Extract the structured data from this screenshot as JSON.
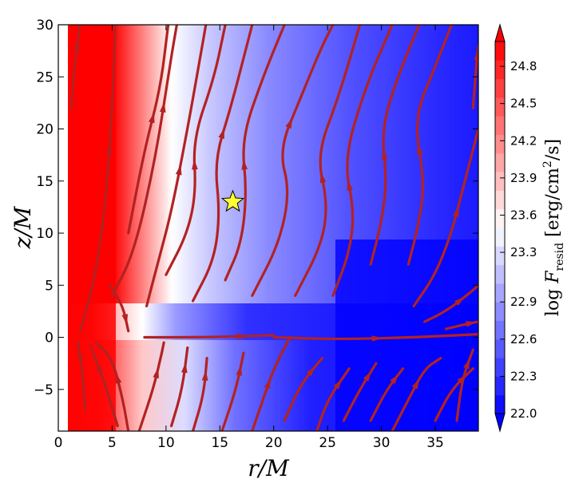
{
  "chart_data": {
    "type": "heatmap",
    "xlabel": "r/M",
    "ylabel": "z/M",
    "xlim": [
      0,
      39
    ],
    "ylim": [
      -9,
      30
    ],
    "x_ticks": [
      "0",
      "5",
      "10",
      "15",
      "20",
      "25",
      "30",
      "35"
    ],
    "y_ticks": [
      "−5",
      "0",
      "5",
      "10",
      "15",
      "20",
      "25",
      "30"
    ],
    "x_tick_values": [
      0,
      5,
      10,
      15,
      20,
      25,
      30,
      35
    ],
    "y_tick_values": [
      -5,
      0,
      5,
      10,
      15,
      20,
      25,
      30
    ],
    "colorbar": {
      "label": "log F_resid [erg/cm²/s]",
      "label_parts": {
        "prefix": "log ",
        "var": "F",
        "sub": "resid",
        "units": " [erg/cm",
        "sup": "2",
        "units_end": "/s]"
      },
      "range": [
        22.0,
        25.0
      ],
      "levels": 20,
      "tick_values": [
        22.0,
        22.3,
        22.6,
        22.9,
        23.3,
        23.6,
        23.9,
        24.2,
        24.5,
        24.8
      ],
      "tick_labels": [
        "22.0",
        "22.3",
        "22.6",
        "22.9",
        "23.3",
        "23.6",
        "23.9",
        "24.2",
        "24.5",
        "24.8"
      ],
      "colormap": "bwr",
      "extend": "both"
    },
    "marker": {
      "shape": "star",
      "x": 16.2,
      "y": 13.0,
      "color": "#ffff33"
    },
    "streamline_color": "#b22222",
    "streamlines": [
      [
        [
          1.2,
          22
        ],
        [
          1.5,
          26
        ],
        [
          2.0,
          30
        ]
      ],
      [
        [
          2.5,
          -7
        ],
        [
          2.2,
          -3
        ],
        [
          1.8,
          -0.4
        ]
      ],
      [
        [
          2.0,
          0.5
        ],
        [
          3.5,
          6
        ],
        [
          4.5,
          14
        ],
        [
          5,
          22
        ],
        [
          5.3,
          30
        ]
      ],
      [
        [
          5.5,
          -8.5
        ],
        [
          4.5,
          -5
        ],
        [
          3,
          -0.8
        ]
      ],
      [
        [
          5,
          4
        ],
        [
          7,
          8
        ],
        [
          9,
          17
        ],
        [
          10.5,
          27
        ],
        [
          11,
          30
        ]
      ],
      [
        [
          6.5,
          -9
        ],
        [
          6,
          -6
        ],
        [
          5,
          -2
        ],
        [
          3.5,
          -0.5
        ]
      ],
      [
        [
          4.8,
          5
        ],
        [
          6,
          3
        ],
        [
          6.5,
          0.6
        ]
      ],
      [
        [
          6.5,
          10
        ],
        [
          8,
          18
        ],
        [
          9.5,
          24
        ],
        [
          10.2,
          30
        ]
      ],
      [
        [
          7.5,
          -9
        ],
        [
          8.8,
          -5
        ],
        [
          9.5,
          -2
        ],
        [
          9.8,
          -0.5
        ]
      ],
      [
        [
          8.2,
          3
        ],
        [
          9.2,
          7
        ],
        [
          10.5,
          12
        ],
        [
          12,
          20
        ],
        [
          13.2,
          27
        ],
        [
          13.7,
          30
        ]
      ],
      [
        [
          10.5,
          -8.5
        ],
        [
          11.5,
          -5
        ],
        [
          12,
          -1
        ]
      ],
      [
        [
          10,
          6
        ],
        [
          12,
          10
        ],
        [
          12.8,
          14
        ],
        [
          12.5,
          19
        ],
        [
          14.5,
          25
        ],
        [
          15.5,
          30
        ]
      ],
      [
        [
          12.5,
          -9
        ],
        [
          13.5,
          -5.5
        ],
        [
          13.8,
          -2
        ]
      ],
      [
        [
          12.5,
          3.5
        ],
        [
          14.5,
          7.5
        ],
        [
          15,
          12
        ],
        [
          14.5,
          17
        ],
        [
          16,
          22
        ],
        [
          17.5,
          28
        ],
        [
          18,
          30
        ]
      ],
      [
        [
          15.2,
          -9
        ],
        [
          16.5,
          -5
        ],
        [
          17.2,
          -1.5
        ]
      ],
      [
        [
          15.5,
          5.5
        ],
        [
          17,
          9
        ],
        [
          17.5,
          14
        ],
        [
          17,
          19
        ],
        [
          19,
          25
        ],
        [
          21,
          30
        ]
      ],
      [
        [
          18,
          -9
        ],
        [
          19,
          -6
        ],
        [
          20,
          -3
        ],
        [
          21.5,
          0
        ]
      ],
      [
        [
          18,
          4
        ],
        [
          20.5,
          9
        ],
        [
          21.5,
          14
        ],
        [
          20.5,
          18
        ],
        [
          22.5,
          23
        ],
        [
          24.5,
          28
        ],
        [
          25.5,
          30
        ]
      ],
      [
        [
          21,
          -8
        ],
        [
          22.5,
          -4.5
        ],
        [
          24.5,
          -2
        ]
      ],
      [
        [
          22,
          4
        ],
        [
          24.5,
          9
        ],
        [
          25,
          13
        ],
        [
          24,
          17.5
        ],
        [
          26,
          23
        ],
        [
          28,
          30
        ]
      ],
      [
        [
          24,
          -9
        ],
        [
          25,
          -6
        ],
        [
          27,
          -3
        ]
      ],
      [
        [
          25.5,
          4
        ],
        [
          27,
          8
        ],
        [
          27.5,
          12
        ],
        [
          26.5,
          17
        ],
        [
          28.5,
          24
        ],
        [
          31,
          30
        ]
      ],
      [
        [
          26.5,
          -8
        ],
        [
          28,
          -5
        ],
        [
          29.5,
          -2.5
        ]
      ],
      [
        [
          29,
          7
        ],
        [
          30,
          11
        ],
        [
          30.5,
          15
        ],
        [
          30,
          20
        ],
        [
          31.5,
          25
        ],
        [
          33.5,
          30
        ]
      ],
      [
        [
          29,
          -8
        ],
        [
          30.5,
          -5
        ],
        [
          32,
          -3
        ]
      ],
      [
        [
          32.5,
          7
        ],
        [
          33.5,
          11
        ],
        [
          34,
          15
        ],
        [
          33,
          21
        ],
        [
          35,
          26
        ],
        [
          36.5,
          30
        ]
      ],
      [
        [
          31,
          -9
        ],
        [
          32.5,
          -6
        ],
        [
          34,
          -3
        ],
        [
          35.5,
          -2
        ]
      ],
      [
        [
          33,
          3
        ],
        [
          35,
          6
        ],
        [
          36.5,
          10
        ],
        [
          37.5,
          14
        ],
        [
          38.5,
          18
        ],
        [
          39,
          20
        ]
      ],
      [
        [
          35,
          -8
        ],
        [
          36.5,
          -5
        ],
        [
          38.5,
          -3
        ]
      ],
      [
        [
          34,
          1.5
        ],
        [
          36,
          2.5
        ],
        [
          38.5,
          4.5
        ],
        [
          39,
          5
        ]
      ],
      [
        [
          20,
          0
        ],
        [
          26,
          -0.2
        ],
        [
          33,
          0
        ],
        [
          39,
          0.3
        ]
      ],
      [
        [
          8,
          0
        ],
        [
          14,
          0
        ],
        [
          20,
          0.2
        ]
      ],
      [
        [
          37,
          -8
        ],
        [
          37.5,
          -4
        ],
        [
          38.5,
          -1.2
        ]
      ],
      [
        [
          36,
          0.8
        ],
        [
          37.5,
          1.2
        ],
        [
          39,
          1.5
        ]
      ],
      [
        [
          38.5,
          22
        ],
        [
          38.8,
          26
        ],
        [
          39,
          28
        ]
      ]
    ]
  }
}
